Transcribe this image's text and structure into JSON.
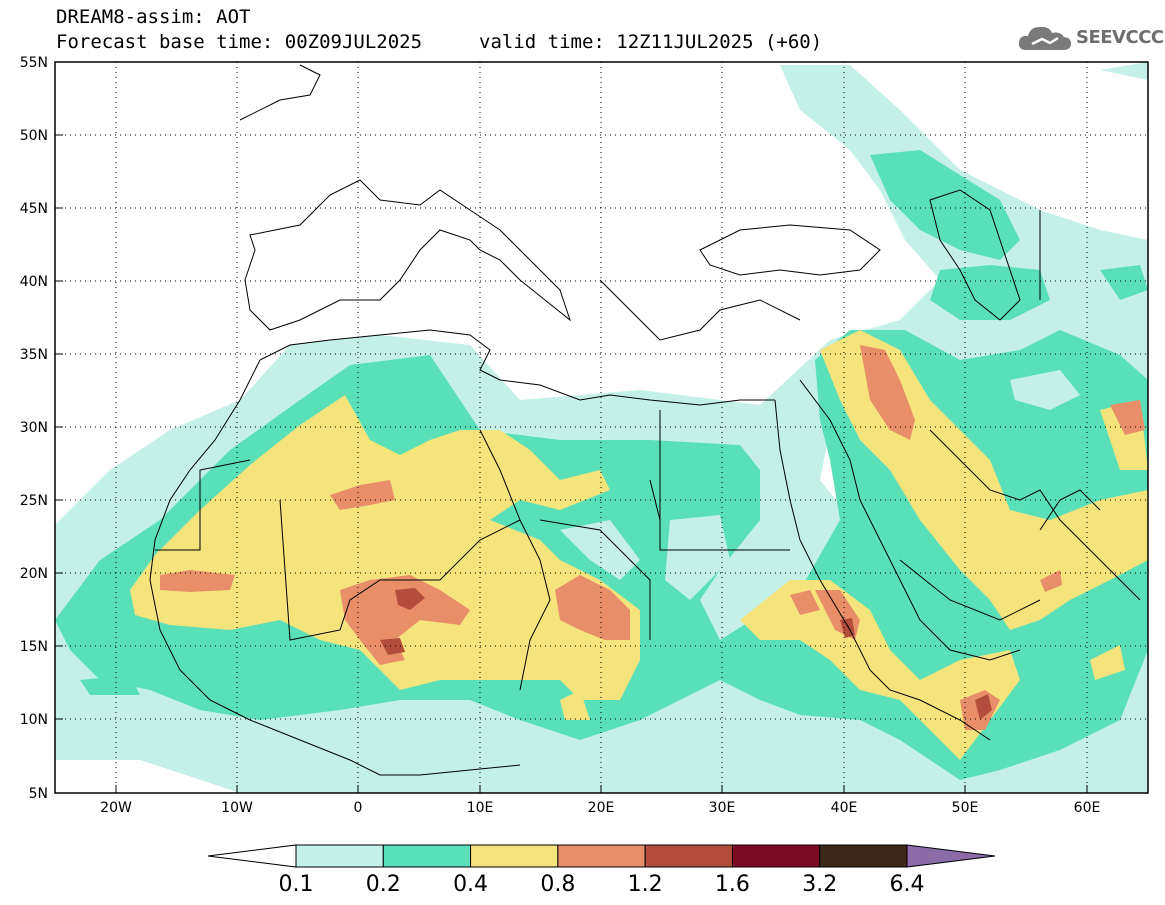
{
  "header": {
    "line1": "DREAM8-assim: AOT",
    "base_time_label": "Forecast base time: 00Z09JUL2025",
    "valid_time_label": "valid time: 12Z11JUL2025 (+60)"
  },
  "logo": {
    "text": "SEEVCCC",
    "icon": "cloud-icon"
  },
  "map": {
    "lon_range": [
      -25,
      65
    ],
    "lat_range": [
      5,
      55
    ],
    "lat_ticks": [
      "55N",
      "50N",
      "45N",
      "40N",
      "35N",
      "30N",
      "25N",
      "20N",
      "15N",
      "10N",
      "5N"
    ],
    "lon_ticks": [
      "20W",
      "10W",
      "0",
      "10E",
      "20E",
      "30E",
      "40E",
      "50E",
      "60E"
    ]
  },
  "legend": {
    "labels": [
      "0.1",
      "0.2",
      "0.4",
      "0.8",
      "1.2",
      "1.6",
      "3.2",
      "6.4"
    ],
    "colors": [
      "#ffffff",
      "#c4f0e8",
      "#5ae0b8",
      "#f5e37c",
      "#e88f6a",
      "#b34e3c",
      "#7d0a25",
      "#3c2818",
      "#8b6ba8"
    ]
  }
}
